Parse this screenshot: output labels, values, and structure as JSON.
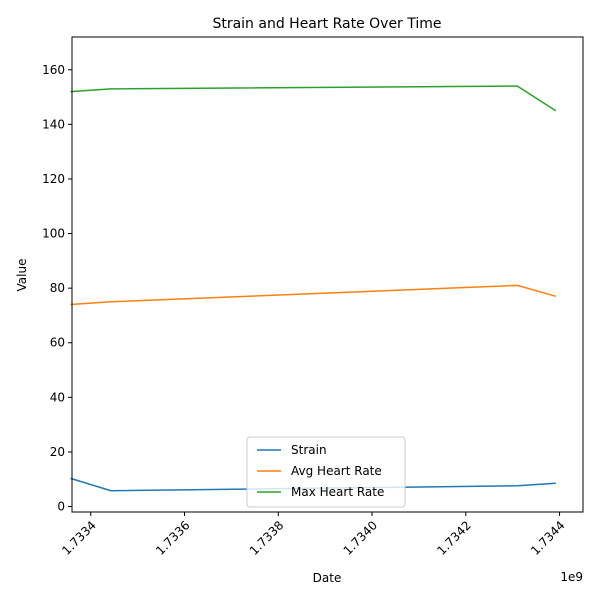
{
  "chart_data": {
    "type": "line",
    "title": "Strain and Heart Rate Over Time",
    "xlabel": "Date",
    "ylabel": "Value",
    "x_offset_label": "1e9",
    "xlim": [
      1.73336,
      1.73445
    ],
    "ylim": [
      -2,
      172
    ],
    "x_ticks": [
      1.7334,
      1.7336,
      1.7338,
      1.734,
      1.7342,
      1.7344
    ],
    "x_tick_labels": [
      "1.7334",
      "1.7336",
      "1.7338",
      "1.7340",
      "1.7342",
      "1.7344"
    ],
    "y_ticks": [
      0,
      20,
      40,
      60,
      80,
      100,
      120,
      140,
      160
    ],
    "y_tick_labels": [
      "0",
      "20",
      "40",
      "60",
      "80",
      "100",
      "120",
      "140",
      "160"
    ],
    "legend_position": "lower-center",
    "series": [
      {
        "name": "Strain",
        "color": "#1f77b4",
        "x": [
          1.733357,
          1.733443,
          1.73431,
          1.734392
        ],
        "values": [
          10.3,
          5.8,
          7.6,
          8.5
        ]
      },
      {
        "name": "Avg Heart Rate",
        "color": "#ff7f0e",
        "x": [
          1.733357,
          1.733443,
          1.73431,
          1.734392
        ],
        "values": [
          74,
          75,
          81,
          77
        ]
      },
      {
        "name": "Max Heart Rate",
        "color": "#2ca02c",
        "x": [
          1.733357,
          1.733443,
          1.73431,
          1.734392
        ],
        "values": [
          152,
          153,
          154,
          145
        ]
      }
    ]
  }
}
